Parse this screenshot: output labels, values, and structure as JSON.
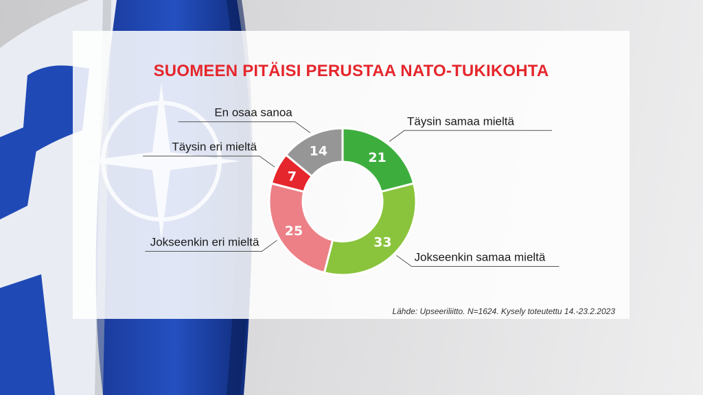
{
  "chart_data": {
    "type": "pie",
    "title": "SUOMEEN PITÄISI PERUSTAA NATO-TUKIKOHTA",
    "categories": [
      "Täysin samaa mieltä",
      "Jokseenkin samaa mieltä",
      "Jokseenkin eri mieltä",
      "Täysin eri mieltä",
      "En osaa sanoa"
    ],
    "values": [
      21,
      33,
      25,
      7,
      14
    ],
    "colors": [
      "#3dae3e",
      "#8ac43c",
      "#ec8086",
      "#e5262c",
      "#969696"
    ],
    "label_side": [
      "right",
      "right",
      "left",
      "left",
      "left"
    ],
    "source": "Lähde: Upseeriliitto. N=1624. Kysely toteutettu 14.-23.2.2023"
  }
}
